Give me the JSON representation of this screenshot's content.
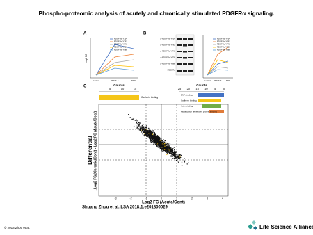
{
  "title": "Phospho-proteomic analysis of acutely and chronically stimulated PDGFRα signaling.",
  "panels": {
    "a": {
      "label": "A",
      "y_label": "Log2 FC",
      "x_labels": [
        "Control",
        "PDGF-A",
        "DDS"
      ],
      "legend": [
        "PDGFRα-Y754",
        "PDGFRα-Y762",
        "PDGFRα-Y742",
        "PDGFRα-Y720",
        "PDGFRα-Y988"
      ]
    },
    "b": {
      "label": "B",
      "blot_rows": [
        "p-PDGFRα-Y754",
        "p-PDGFRα-Y762",
        "p-PDGFRα-Y742",
        "p-PDGFRα-Y720",
        "p-PDGFRα-Y988",
        "PDGFRα"
      ],
      "x_labels": [
        "Control",
        "PDGF-A",
        "DDS"
      ],
      "legend": [
        "PDGFRα-Y754",
        "PDGFRα-Y762",
        "PDGFRα-Y742",
        "PDGFRα-Y720",
        "PDGFRα-Y988"
      ]
    },
    "c": {
      "label": "C",
      "counts_left": "Counts",
      "counts_right": "Counts",
      "left_ticks": [
        "5",
        "10",
        "15"
      ],
      "right_ticks": [
        "25",
        "20",
        "15",
        "10",
        "5",
        "0"
      ],
      "left_bar": "Cadherin binding",
      "bars": [
        "DNA binding",
        "Cadherin binding",
        "Actin binding",
        "Modification dependent protein binding"
      ],
      "y_title": "Differential",
      "y_label": "Log2 FC (Chronic/Cont) - Log2 FC (Acute/Cont)",
      "x_label": "Log2 FC (Acute/Cont)",
      "x_ticks": [
        "-3",
        "-2",
        "-1",
        "0",
        "1",
        "2",
        "3",
        "4"
      ],
      "y_ticks": [
        "3",
        "2",
        "1",
        "0",
        "-1",
        "-2"
      ]
    }
  },
  "citation": "Shuang Zhou et al. LSA 2018;1:e201800029",
  "copyright": "© 2018 Zhou et al.",
  "journal": "Life Science Alliance"
}
